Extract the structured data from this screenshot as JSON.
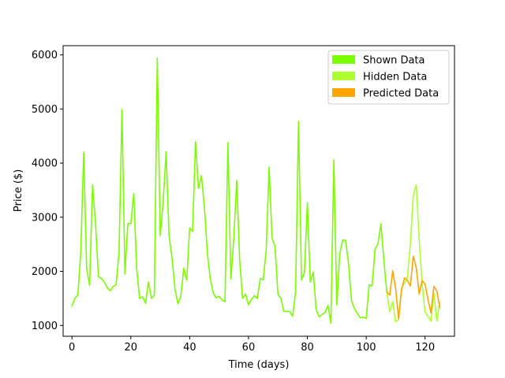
{
  "chart_data": {
    "type": "line",
    "xlabel": "Time (days)",
    "ylabel": "Price ($)",
    "xlim": [
      -3,
      130
    ],
    "ylim": [
      800,
      6170
    ],
    "xticks": [
      0,
      20,
      40,
      60,
      80,
      100,
      120
    ],
    "yticks": [
      1000,
      2000,
      3000,
      4000,
      5000,
      6000
    ],
    "xtick_labels": [
      "0",
      "20",
      "40",
      "60",
      "80",
      "100",
      "120"
    ],
    "ytick_labels": [
      "1000",
      "2000",
      "3000",
      "4000",
      "5000",
      "6000"
    ],
    "legend_position": "top-right",
    "grid": false,
    "series": [
      {
        "name": "Shown Data",
        "color": "#7cfc00",
        "x": [
          0,
          1,
          2,
          3,
          4,
          5,
          6,
          7,
          8,
          9,
          10,
          11,
          12,
          13,
          14,
          15,
          16,
          17,
          18,
          19,
          20,
          21,
          22,
          23,
          24,
          25,
          26,
          27,
          28,
          29,
          30,
          31,
          32,
          33,
          34,
          35,
          36,
          37,
          38,
          39,
          40,
          41,
          42,
          43,
          44,
          45,
          46,
          47,
          48,
          49,
          50,
          51,
          52,
          53,
          54,
          55,
          56,
          57,
          58,
          59,
          60,
          61,
          62,
          63,
          64,
          65,
          66,
          67,
          68,
          69,
          70,
          71,
          72,
          73,
          74,
          75,
          76,
          77,
          78,
          79,
          80,
          81,
          82,
          83,
          84,
          85,
          86,
          87,
          88,
          89,
          90,
          91,
          92,
          93,
          94,
          95,
          96,
          97,
          98,
          99,
          100,
          101,
          102,
          103,
          104,
          105,
          106,
          107
        ],
        "y": [
          1360,
          1500,
          1560,
          2350,
          4200,
          2050,
          1740,
          3600,
          2900,
          1900,
          1870,
          1800,
          1700,
          1640,
          1720,
          1750,
          2350,
          4990,
          1950,
          2880,
          2880,
          3440,
          2050,
          1500,
          1530,
          1410,
          1800,
          1500,
          1560,
          5940,
          2660,
          3280,
          4210,
          2660,
          2250,
          1680,
          1400,
          1540,
          2060,
          1840,
          2800,
          2740,
          4400,
          3530,
          3770,
          3200,
          2350,
          1860,
          1600,
          1510,
          1540,
          1470,
          1440,
          4380,
          1860,
          2600,
          3680,
          2200,
          1500,
          1580,
          1380,
          1480,
          1550,
          1500,
          1870,
          1840,
          2380,
          3930,
          2610,
          2470,
          1580,
          1500,
          1260,
          1260,
          1260,
          1170,
          1620,
          4770,
          1840,
          1970,
          3270,
          1800,
          1990,
          1290,
          1160,
          1200,
          1240,
          1370,
          1040,
          4060,
          1380,
          2320,
          2580,
          2570,
          2140,
          1460,
          1310,
          1220,
          1140,
          1150,
          1130,
          1750,
          1730,
          2410,
          2510,
          2880,
          2200,
          1620
        ]
      },
      {
        "name": "Hidden Data",
        "color": "#adff2f",
        "x": [
          107,
          108,
          109,
          110,
          111,
          112,
          113,
          114,
          115,
          116,
          117,
          118,
          119,
          120,
          121,
          122,
          123,
          124,
          125
        ],
        "y": [
          1620,
          1250,
          1440,
          1070,
          1110,
          1700,
          1780,
          1880,
          2500,
          3400,
          3600,
          2600,
          1770,
          1250,
          1170,
          1080,
          1600,
          1080,
          1430
        ]
      },
      {
        "name": "Predicted Data",
        "color": "#ffa500",
        "x": [
          107,
          108,
          109,
          110,
          111,
          112,
          113,
          114,
          115,
          116,
          117,
          118,
          119,
          120,
          121,
          122,
          123,
          124,
          125
        ],
        "y": [
          1620,
          1560,
          2010,
          1680,
          1130,
          1650,
          1880,
          1830,
          1730,
          2280,
          2070,
          1580,
          1830,
          1760,
          1480,
          1230,
          1720,
          1640,
          1330
        ]
      }
    ]
  }
}
